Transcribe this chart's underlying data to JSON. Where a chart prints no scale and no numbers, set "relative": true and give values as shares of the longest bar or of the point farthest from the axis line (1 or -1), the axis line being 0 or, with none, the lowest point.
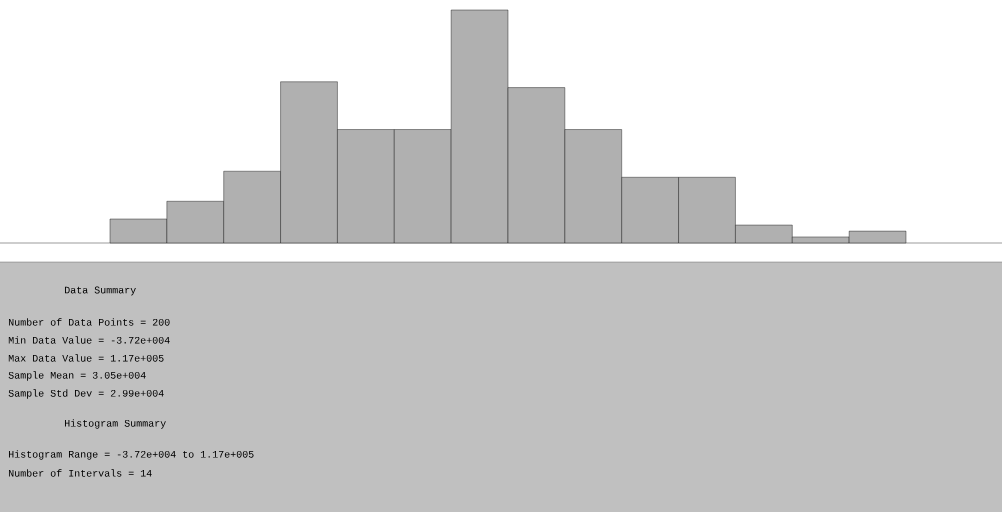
{
  "chart_data": {
    "type": "bar",
    "relative": true,
    "color": "#b0b0b0",
    "categories": [
      null,
      null,
      null,
      null,
      null,
      null,
      null,
      null,
      null,
      null,
      null,
      null,
      null,
      null
    ],
    "values": [
      0.103,
      0.179,
      0.308,
      0.692,
      0.487,
      0.487,
      1,
      0.667,
      0.487,
      0.282,
      0.282,
      0.077,
      0.026,
      0.051
    ],
    "annotations": [
      "Data Summary",
      "Number of Data Points = 200",
      "Min Data Value = -3.72e+004",
      "Max Data Value = 1.17e+005",
      "Sample Mean = 3.05e+004",
      "Sample Std Dev = 2.99e+004",
      "Histogram Summary",
      "Histogram Range = -3.72e+004 to 1.17e+005",
      "Number of Intervals = 14"
    ]
  }
}
